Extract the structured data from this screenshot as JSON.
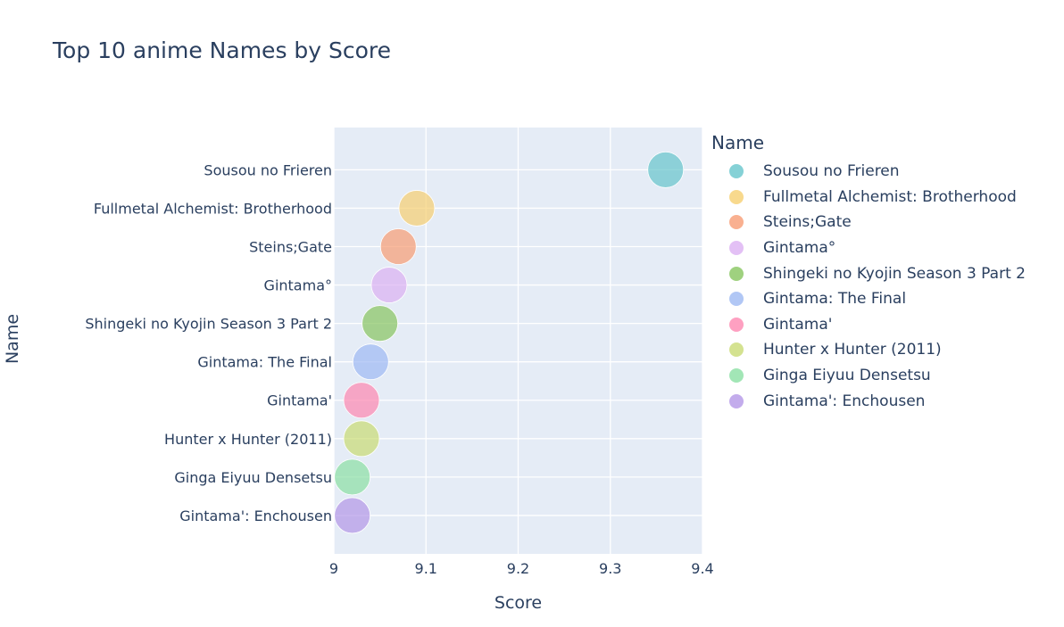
{
  "title": "Top 10 anime Names by Score",
  "legend": {
    "title": "Name"
  },
  "chart_data": {
    "type": "scatter",
    "title": "Top 10 anime Names by Score",
    "xlabel": "Score",
    "ylabel": "Name",
    "xlim": [
      9.0,
      9.4
    ],
    "xticks": [
      "9",
      "9.1",
      "9.2",
      "9.3",
      "9.4"
    ],
    "grid": true,
    "legend_position": "right",
    "series": [
      {
        "name": "Sousou no Frieren",
        "x": 9.36,
        "y": "Sousou no Frieren",
        "color": "#66c5cc"
      },
      {
        "name": "Fullmetal Alchemist: Brotherhood",
        "x": 9.09,
        "y": "Fullmetal Alchemist: Brotherhood",
        "color": "#f6cf71"
      },
      {
        "name": "Steins;Gate",
        "x": 9.07,
        "y": "Steins;Gate",
        "color": "#f89c74"
      },
      {
        "name": "Gintama°",
        "x": 9.06,
        "y": "Gintama°",
        "color": "#dcb0f2"
      },
      {
        "name": "Shingeki no Kyojin Season 3 Part 2",
        "x": 9.05,
        "y": "Shingeki no Kyojin Season 3 Part 2",
        "color": "#87c55f"
      },
      {
        "name": "Gintama: The Final",
        "x": 9.04,
        "y": "Gintama: The Final",
        "color": "#9eb9f3"
      },
      {
        "name": "Gintama'",
        "x": 9.03,
        "y": "Gintama'",
        "color": "#fe88b1"
      },
      {
        "name": "Hunter x Hunter (2011)",
        "x": 9.03,
        "y": "Hunter x Hunter (2011)",
        "color": "#c9db74"
      },
      {
        "name": "Ginga Eiyuu Densetsu",
        "x": 9.02,
        "y": "Ginga Eiyuu Densetsu",
        "color": "#8be0a4"
      },
      {
        "name": "Gintama': Enchousen",
        "x": 9.02,
        "y": "Gintama': Enchousen",
        "color": "#b497e7"
      }
    ]
  }
}
